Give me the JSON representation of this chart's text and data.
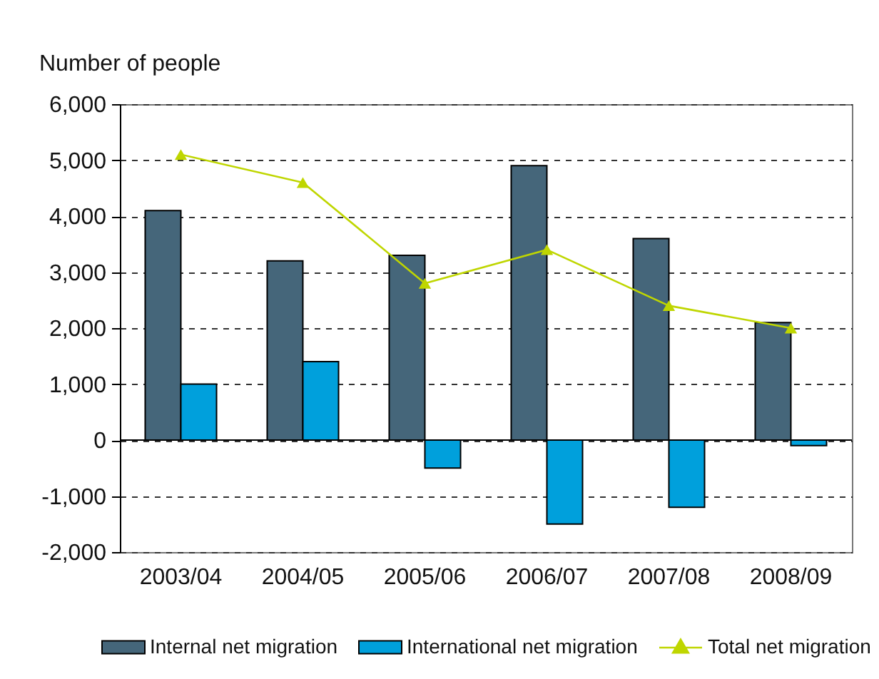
{
  "chart_data": {
    "type": "bar",
    "ylabel": "Number of people",
    "categories": [
      "2003/04",
      "2004/05",
      "2005/06",
      "2006/07",
      "2007/08",
      "2008/09"
    ],
    "series": [
      {
        "name": "Internal net migration",
        "color": "#45667a",
        "values": [
          4100,
          3200,
          3300,
          4900,
          3600,
          2100
        ]
      },
      {
        "name": "International net migration",
        "color": "#00a0dc",
        "values": [
          1000,
          1400,
          -500,
          -1500,
          -1200,
          -100
        ]
      },
      {
        "name": "Total net migration",
        "type": "line",
        "color": "#bfd600",
        "marker": "triangle",
        "values": [
          5100,
          4600,
          2800,
          3400,
          2400,
          2000
        ]
      }
    ],
    "ylim": [
      -2000,
      6000
    ],
    "yticks": [
      {
        "value": -2000,
        "label": "-2,000"
      },
      {
        "value": -1000,
        "label": "-1,000"
      },
      0,
      {
        "value": 1000,
        "label": "1,000"
      },
      {
        "value": 2000,
        "label": "2,000"
      },
      {
        "value": 3000,
        "label": "3,000"
      },
      {
        "value": 4000,
        "label": "4,000"
      },
      {
        "value": 5000,
        "label": "5,000"
      },
      {
        "value": 6000,
        "label": "6,000"
      }
    ],
    "grid": "y",
    "legend": "bottom"
  }
}
